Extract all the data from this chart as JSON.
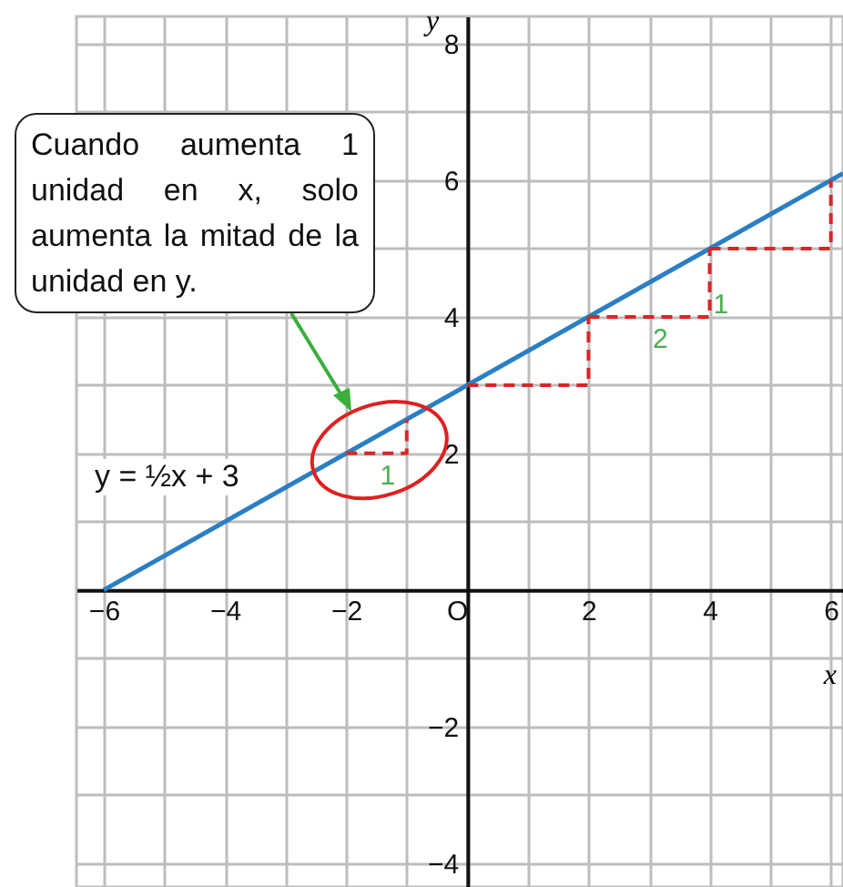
{
  "chart_data": {
    "type": "line",
    "xlabel": "x",
    "ylabel": "y",
    "xlim": [
      -6.45,
      6.2
    ],
    "ylim": [
      -4.35,
      8.4
    ],
    "xticks": [
      -6,
      {
        "value": -5,
        "label": null
      },
      -4,
      {
        "value": -3,
        "label": null
      },
      -2,
      {
        "value": -1,
        "label": null
      },
      {
        "value": 0,
        "label": "O"
      },
      {
        "value": 1,
        "label": null
      },
      2,
      {
        "value": 3,
        "label": null
      },
      4,
      {
        "value": 5,
        "label": null
      },
      6
    ],
    "yticks": [
      -4,
      {
        "value": -3,
        "label": null
      },
      -2,
      {
        "value": -1,
        "label": null
      },
      {
        "value": 0,
        "label": null
      },
      {
        "value": 1,
        "label": null
      },
      2,
      {
        "value": 3,
        "label": null
      },
      4,
      {
        "value": 5,
        "label": null
      },
      6,
      {
        "value": 7,
        "label": null
      },
      8
    ],
    "grid": true,
    "series": [
      {
        "name": "y = ½x + 3",
        "color": "#2a7fc4",
        "x": [
          -6,
          6.2
        ],
        "values": [
          0,
          6.1
        ]
      },
      {
        "color": "#d62728",
        "line_style": "dashed",
        "x": [
          -2,
          -1,
          -1
        ],
        "values": [
          2,
          2,
          2.5
        ]
      },
      {
        "color": "#d62728",
        "line_style": "dashed",
        "x": [
          0,
          2,
          2
        ],
        "values": [
          3,
          3,
          4
        ]
      },
      {
        "color": "#d62728",
        "line_style": "dashed",
        "x": [
          2,
          4,
          4
        ],
        "values": [
          4,
          4,
          5
        ]
      },
      {
        "color": "#d62728",
        "line_style": "dashed",
        "x": [
          4,
          6,
          6
        ],
        "values": [
          5,
          5,
          6
        ]
      }
    ],
    "annotations": [
      "Cuando aumenta 1 unidad en x, solo aumenta la mitad de la unidad en y.",
      {
        "text": "1",
        "x": -1.5,
        "y": 2
      },
      {
        "text": "2",
        "x": 3,
        "y": 4
      },
      {
        "text": "1",
        "x": 4,
        "y": 4.5
      }
    ]
  }
}
